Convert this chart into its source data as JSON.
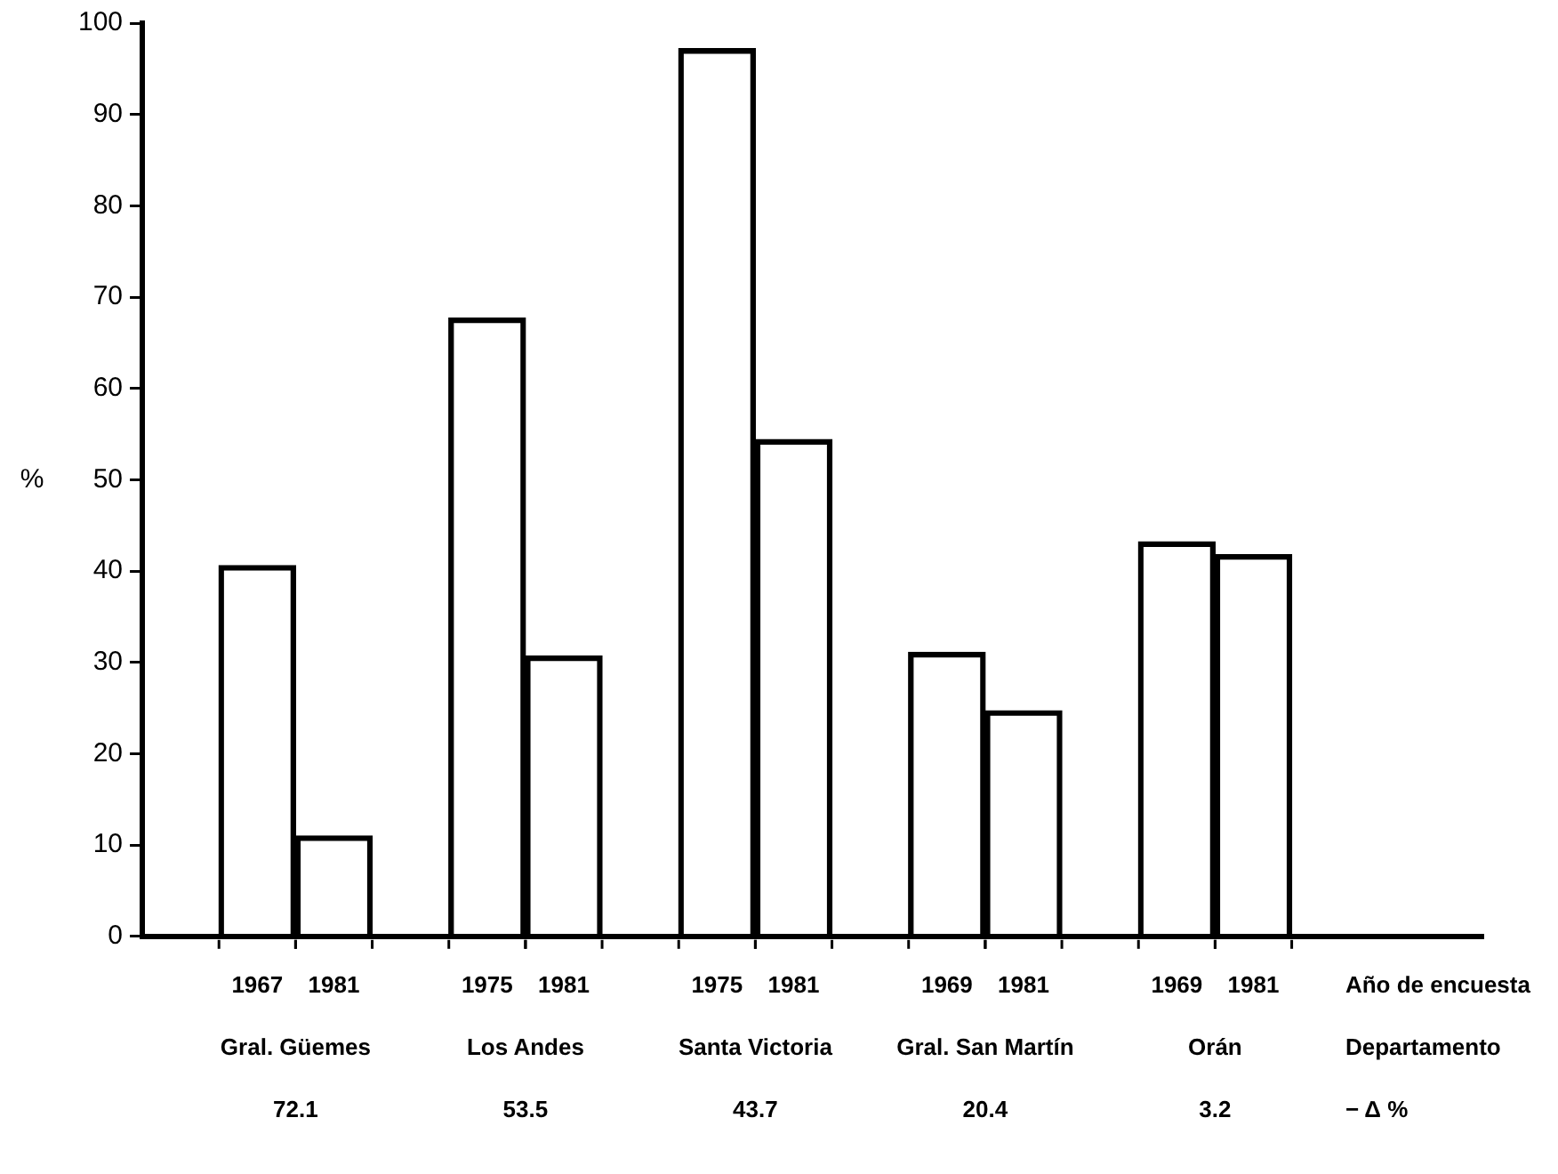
{
  "chart_data": {
    "type": "bar",
    "ylabel": "%",
    "categories": [
      "1967",
      "1981",
      "1975",
      "1981",
      "1975",
      "1981",
      "1969",
      "1981",
      "1969",
      "1981"
    ],
    "values": [
      40.6,
      11.0,
      67.7,
      30.7,
      97.2,
      54.4,
      31.1,
      24.7,
      43.2,
      41.8
    ],
    "color": "#000000",
    "ylim": [
      0,
      100
    ],
    "yticks": [
      0,
      10,
      20,
      30,
      40,
      50,
      60,
      70,
      80,
      90,
      100
    ],
    "grid": false,
    "legend": false,
    "annotations": [
      "Gral. Güemes",
      "Los Andes",
      "Santa Victoria",
      "Gral. San Martín",
      "Orán",
      "72.1",
      "53.5",
      "43.7",
      "20.4",
      "3.2",
      "Año de encuesta",
      "Departamento",
      "− Δ %"
    ]
  }
}
